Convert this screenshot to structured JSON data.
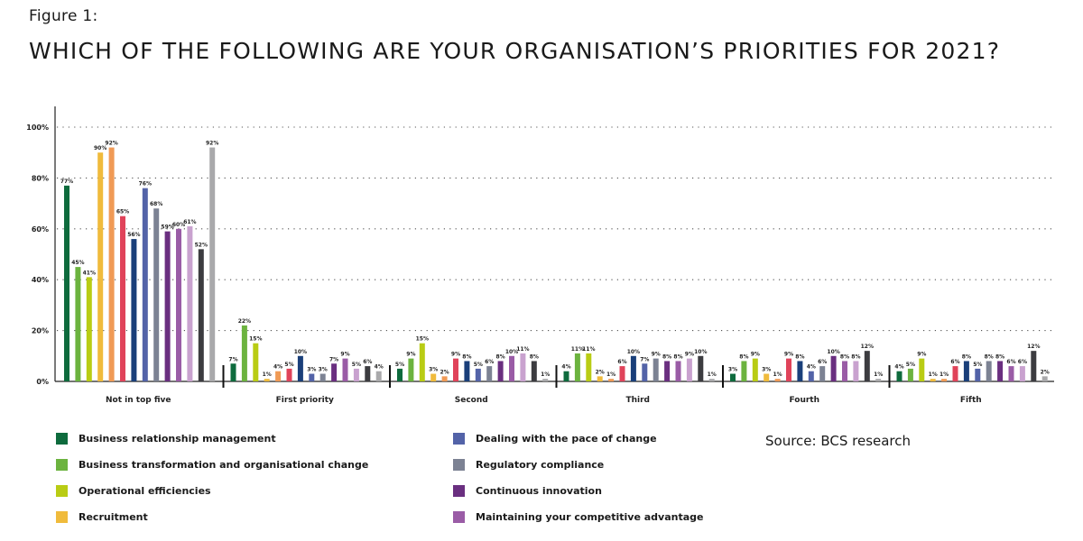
{
  "figure_label": "Figure 1:",
  "title": "WHICH OF THE FOLLOWING ARE YOUR ORGANISATION’S PRIORITIES FOR 2021?",
  "source": "Source: BCS research",
  "chart_data": {
    "type": "bar",
    "ylim": [
      0,
      100
    ],
    "yticks": [
      0,
      20,
      40,
      60,
      80,
      100
    ],
    "ytick_labels": [
      "0%",
      "20%",
      "40%",
      "60%",
      "80%",
      "100%"
    ],
    "grid": "dotted horizontal",
    "legend_position": "bottom",
    "categories": [
      "Not in top five",
      "First priority",
      "Second",
      "Third",
      "Fourth",
      "Fifth"
    ],
    "series": [
      {
        "name": "Business relationship management",
        "color": "#0e6b3d",
        "values": [
          77,
          7,
          5,
          4,
          3,
          4
        ]
      },
      {
        "name": "Business transformation and organisational change",
        "color": "#6cb33f",
        "values": [
          45,
          22,
          9,
          11,
          8,
          5
        ]
      },
      {
        "name": "Operational efficiencies",
        "color": "#b9cc14",
        "values": [
          41,
          15,
          15,
          11,
          9,
          9
        ]
      },
      {
        "name": "Recruitment",
        "color": "#f0bb3c",
        "values": [
          90,
          1,
          3,
          2,
          3,
          1
        ]
      },
      {
        "name": "",
        "color": "#f09a55",
        "values": [
          92,
          4,
          2,
          1,
          1,
          1
        ]
      },
      {
        "name": "",
        "color": "#e0435a",
        "values": [
          65,
          5,
          9,
          6,
          9,
          6
        ]
      },
      {
        "name": "",
        "color": "#1a3f7a",
        "values": [
          56,
          10,
          8,
          10,
          8,
          8
        ]
      },
      {
        "name": "Dealing with the pace of change",
        "color": "#5363a8",
        "values": [
          76,
          3,
          5,
          7,
          4,
          5
        ]
      },
      {
        "name": "Regulatory compliance",
        "color": "#7c8293",
        "values": [
          68,
          3,
          6,
          9,
          6,
          8
        ]
      },
      {
        "name": "Continuous innovation",
        "color": "#6a2f80",
        "values": [
          59,
          7,
          8,
          8,
          10,
          8
        ]
      },
      {
        "name": "Maintaining your competitive advantage",
        "color": "#9a5ca6",
        "values": [
          60,
          9,
          10,
          8,
          8,
          6
        ]
      },
      {
        "name": "",
        "color": "#c9a2cf",
        "values": [
          61,
          5,
          11,
          9,
          8,
          6
        ]
      },
      {
        "name": "",
        "color": "#3c3c40",
        "values": [
          52,
          6,
          8,
          10,
          12,
          12
        ]
      },
      {
        "name": "",
        "color": "#a9a9ab",
        "values": [
          92,
          4,
          1,
          1,
          1,
          2
        ]
      }
    ],
    "data_labels": [
      [
        "77%",
        "45%",
        "41%",
        "90%",
        "92%",
        "65%",
        "56%",
        "76%",
        "68%",
        "59%",
        "60%",
        "61%",
        "52%",
        "92%"
      ],
      [
        "7%",
        "22%",
        "15%",
        "1%",
        "4%",
        "5%",
        "10%",
        "3%",
        "3%",
        "7%",
        "9%",
        "5%",
        "6%",
        "4%"
      ],
      [
        "5%",
        "9%",
        "15%",
        "3%",
        "2%",
        "9%",
        "8%",
        "5%",
        "6%",
        "8%",
        "10%",
        "11%",
        "8%",
        "1%"
      ],
      [
        "4%",
        "11%",
        "11%",
        "2%",
        "1%",
        "6%",
        "10%",
        "7%",
        "9%",
        "8%",
        "8%",
        "9%",
        "10%",
        "1%"
      ],
      [
        "3%",
        "8%",
        "9%",
        "3%",
        "1%",
        "9%",
        "8%",
        "4%",
        "6%",
        "10%",
        "8%",
        "8%",
        "12%",
        "1%"
      ],
      [
        "4%",
        "5%",
        "9%",
        "1%",
        "1%",
        "6%",
        "8%",
        "5%",
        "8%",
        "8%",
        "6%",
        "6%",
        "12%",
        "2%"
      ]
    ]
  }
}
